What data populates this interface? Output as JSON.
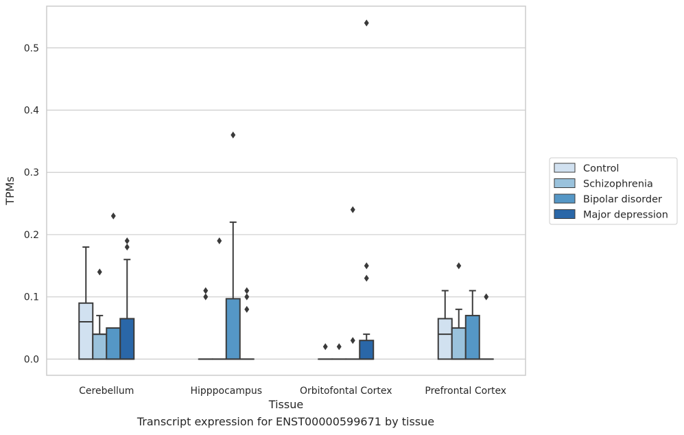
{
  "chart_data": {
    "type": "boxplot",
    "xlabel": "Tissue",
    "ylabel": "TPMs",
    "ylim": [
      -0.026,
      0.567
    ],
    "yticks": [
      0.0,
      0.1,
      0.2,
      0.3,
      0.4,
      0.5
    ],
    "ytick_labels": [
      "0.0",
      "0.1",
      "0.2",
      "0.3",
      "0.4",
      "0.5"
    ],
    "grid": true,
    "legend_position": "right",
    "categories": [
      "Cerebellum",
      "Hipppocampus",
      "Orbitofontal Cortex",
      "Prefrontal Cortex"
    ],
    "series": [
      {
        "name": "Control",
        "color": "#d1e1f0",
        "boxes": [
          {
            "q1": 0.0,
            "median": 0.06,
            "q3": 0.09,
            "whisker_low": 0.0,
            "whisker_high": 0.18,
            "outliers": []
          },
          {
            "q1": 0.0,
            "median": 0.0,
            "q3": 0.0,
            "whisker_low": 0.0,
            "whisker_high": 0.0,
            "outliers": [
              0.1,
              0.11
            ]
          },
          {
            "q1": 0.0,
            "median": 0.0,
            "q3": 0.0,
            "whisker_low": 0.0,
            "whisker_high": 0.0,
            "outliers": [
              0.02
            ]
          },
          {
            "q1": 0.0,
            "median": 0.04,
            "q3": 0.065,
            "whisker_low": 0.0,
            "whisker_high": 0.11,
            "outliers": []
          }
        ]
      },
      {
        "name": "Schizophrenia",
        "color": "#9ac2dc",
        "boxes": [
          {
            "q1": 0.0,
            "median": 0.04,
            "q3": 0.04,
            "whisker_low": 0.0,
            "whisker_high": 0.07,
            "outliers": [
              0.14
            ]
          },
          {
            "q1": 0.0,
            "median": 0.0,
            "q3": 0.0,
            "whisker_low": 0.0,
            "whisker_high": 0.0,
            "outliers": [
              0.19
            ]
          },
          {
            "q1": 0.0,
            "median": 0.0,
            "q3": 0.0,
            "whisker_low": 0.0,
            "whisker_high": 0.0,
            "outliers": [
              0.02
            ]
          },
          {
            "q1": 0.0,
            "median": 0.0,
            "q3": 0.05,
            "whisker_low": 0.0,
            "whisker_high": 0.08,
            "outliers": [
              0.15
            ]
          }
        ]
      },
      {
        "name": "Bipolar disorder",
        "color": "#5597c6",
        "boxes": [
          {
            "q1": 0.0,
            "median": 0.0,
            "q3": 0.05,
            "whisker_low": 0.0,
            "whisker_high": 0.05,
            "outliers": [
              0.23
            ]
          },
          {
            "q1": 0.0,
            "median": 0.0,
            "q3": 0.097,
            "whisker_low": 0.0,
            "whisker_high": 0.22,
            "outliers": [
              0.36
            ]
          },
          {
            "q1": 0.0,
            "median": 0.0,
            "q3": 0.0,
            "whisker_low": 0.0,
            "whisker_high": 0.0,
            "outliers": [
              0.03,
              0.24
            ]
          },
          {
            "q1": 0.0,
            "median": 0.0,
            "q3": 0.07,
            "whisker_low": 0.0,
            "whisker_high": 0.11,
            "outliers": []
          }
        ]
      },
      {
        "name": "Major depression",
        "color": "#2a67a8",
        "boxes": [
          {
            "q1": 0.0,
            "median": 0.0,
            "q3": 0.065,
            "whisker_low": 0.0,
            "whisker_high": 0.16,
            "outliers": [
              0.18,
              0.19
            ]
          },
          {
            "q1": 0.0,
            "median": 0.0,
            "q3": 0.0,
            "whisker_low": 0.0,
            "whisker_high": 0.0,
            "outliers": [
              0.08,
              0.1,
              0.11
            ]
          },
          {
            "q1": 0.0,
            "median": 0.0,
            "q3": 0.03,
            "whisker_low": 0.0,
            "whisker_high": 0.04,
            "outliers": [
              0.13,
              0.15,
              0.54
            ]
          },
          {
            "q1": 0.0,
            "median": 0.0,
            "q3": 0.0,
            "whisker_low": 0.0,
            "whisker_high": 0.0,
            "outliers": [
              0.1
            ]
          }
        ]
      }
    ]
  },
  "caption": "Transcript expression for ENST00000599671 by tissue"
}
